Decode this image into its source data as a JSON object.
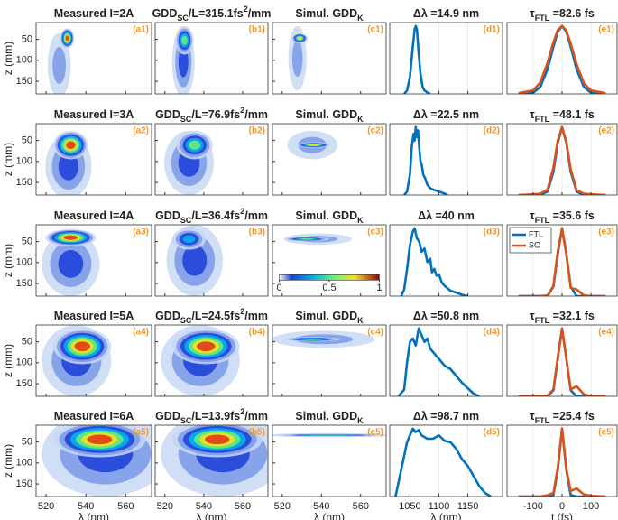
{
  "chart_data": [
    {
      "type": "heatmap",
      "title": [
        "Measured I=2A"
      ],
      "label": "(a1)",
      "xlim": [
        515,
        573
      ],
      "xticks": [
        520,
        540,
        560
      ],
      "ylim": [
        180,
        10
      ],
      "yticks": [
        50,
        100,
        150
      ],
      "ylabel": "z (mm)"
    },
    {
      "type": "heatmap",
      "title": [
        "GDD",
        {
          "sub": "SC"
        },
        "/L=315.1fs",
        {
          "sup": "2"
        },
        "/mm"
      ],
      "label": "(b1)",
      "xlim": [
        515,
        573
      ],
      "xticks": [
        520,
        540,
        560
      ],
      "ylim": [
        180,
        10
      ],
      "yticks": [
        50,
        100,
        150
      ]
    },
    {
      "type": "heatmap",
      "title": [
        "Simul. GDD",
        {
          "sub": "K"
        }
      ],
      "label": "(c1)",
      "xlim": [
        515,
        573
      ],
      "xticks": [
        520,
        540,
        560
      ],
      "ylim": [
        180,
        10
      ],
      "yticks": [
        50,
        100,
        150
      ]
    },
    {
      "type": "line",
      "title": [
        "Δλ =14.9 nm"
      ],
      "label": "(d1)",
      "xlim": [
        1015,
        1210
      ],
      "xticks": [
        1050,
        1100,
        1150
      ],
      "ylim": [
        0,
        1.05
      ],
      "grid": true,
      "x": [
        1040,
        1045,
        1050,
        1055,
        1058,
        1060,
        1062,
        1065,
        1068,
        1072,
        1075,
        1080,
        1085
      ],
      "series": [
        {
          "color": "#0072bd",
          "values": [
            0,
            0.05,
            0.25,
            0.7,
            0.95,
            1,
            0.95,
            0.6,
            0.3,
            0.1,
            0.05,
            0.02,
            0
          ]
        }
      ]
    },
    {
      "type": "line",
      "title": [
        "τ",
        {
          "sub": "FTL"
        },
        " =82.6 fs"
      ],
      "label": "(e1)",
      "xlim": [
        -190,
        190
      ],
      "xticks": [
        -100,
        0,
        100
      ],
      "ylim": [
        0,
        1.05
      ],
      "grid": true,
      "x": [
        -150,
        -100,
        -75,
        -50,
        -30,
        -15,
        0,
        15,
        30,
        50,
        75,
        100,
        150
      ],
      "series": [
        {
          "color": "#0072bd",
          "values": [
            0,
            0.017,
            0.102,
            0.362,
            0.694,
            0.912,
            1,
            0.912,
            0.694,
            0.362,
            0.102,
            0.017,
            0
          ]
        },
        {
          "color": "#d95319",
          "values": [
            0.01,
            0.05,
            0.17,
            0.46,
            0.76,
            0.94,
            1,
            0.93,
            0.74,
            0.44,
            0.16,
            0.05,
            0.01
          ]
        }
      ]
    },
    {
      "type": "heatmap",
      "title": [
        "Measured I=3A"
      ],
      "label": "(a2)",
      "xlim": [
        515,
        573
      ],
      "xticks": [
        520,
        540,
        560
      ],
      "ylim": [
        180,
        10
      ],
      "yticks": [
        50,
        100,
        150
      ],
      "ylabel": "z (mm)"
    },
    {
      "type": "heatmap",
      "title": [
        "GDD",
        {
          "sub": "SC"
        },
        "/L=76.9fs",
        {
          "sup": "2"
        },
        "/mm"
      ],
      "label": "(b2)",
      "xlim": [
        515,
        573
      ],
      "xticks": [
        520,
        540,
        560
      ],
      "ylim": [
        180,
        10
      ],
      "yticks": [
        50,
        100,
        150
      ]
    },
    {
      "type": "heatmap",
      "title": [
        "Simul. GDD",
        {
          "sub": "K"
        }
      ],
      "label": "(c2)",
      "xlim": [
        515,
        573
      ],
      "xticks": [
        520,
        540,
        560
      ],
      "ylim": [
        180,
        10
      ],
      "yticks": [
        50,
        100,
        150
      ]
    },
    {
      "type": "line",
      "title": [
        "Δλ =22.5 nm"
      ],
      "label": "(d2)",
      "xlim": [
        1015,
        1210
      ],
      "xticks": [
        1050,
        1100,
        1150
      ],
      "ylim": [
        0,
        1.05
      ],
      "grid": true,
      "x": [
        1040,
        1045,
        1050,
        1053,
        1056,
        1058,
        1060,
        1062,
        1064,
        1066,
        1068,
        1070,
        1073,
        1076,
        1080,
        1085,
        1090,
        1100,
        1110,
        1115
      ],
      "series": [
        {
          "color": "#0072bd",
          "values": [
            0,
            0.05,
            0.3,
            0.7,
            0.9,
            0.8,
            1,
            0.85,
            0.95,
            0.7,
            0.5,
            0.45,
            0.3,
            0.25,
            0.15,
            0.1,
            0.08,
            0.05,
            0.02,
            0
          ]
        }
      ]
    },
    {
      "type": "line",
      "title": [
        "τ",
        {
          "sub": "FTL"
        },
        " =48.1 fs"
      ],
      "label": "(e2)",
      "xlim": [
        -190,
        190
      ],
      "xticks": [
        -100,
        0,
        100
      ],
      "ylim": [
        0,
        1.05
      ],
      "grid": true,
      "x": [
        -150,
        -100,
        -75,
        -50,
        -30,
        -15,
        0,
        15,
        30,
        50,
        75,
        100,
        150
      ],
      "series": [
        {
          "color": "#0072bd",
          "values": [
            0,
            0,
            0,
            0.05,
            0.34,
            0.764,
            1,
            0.764,
            0.34,
            0.05,
            0,
            0,
            0
          ]
        },
        {
          "color": "#d95319",
          "values": [
            0,
            0.01,
            0.02,
            0.08,
            0.4,
            0.8,
            1,
            0.78,
            0.38,
            0.07,
            0.02,
            0.01,
            0
          ]
        }
      ]
    },
    {
      "type": "heatmap",
      "title": [
        "Measured I=4A"
      ],
      "label": "(a3)",
      "xlim": [
        515,
        573
      ],
      "xticks": [
        520,
        540,
        560
      ],
      "ylim": [
        180,
        10
      ],
      "yticks": [
        50,
        100,
        150
      ],
      "ylabel": "z (mm)"
    },
    {
      "type": "heatmap",
      "title": [
        "GDD",
        {
          "sub": "SC"
        },
        "/L=36.4fs",
        {
          "sup": "2"
        },
        "/mm"
      ],
      "label": "(b3)",
      "xlim": [
        515,
        573
      ],
      "xticks": [
        520,
        540,
        560
      ],
      "ylim": [
        180,
        10
      ],
      "yticks": [
        50,
        100,
        150
      ]
    },
    {
      "type": "heatmap",
      "title": [
        "Simul. GDD",
        {
          "sub": "K"
        }
      ],
      "label": "(c3)",
      "xlim": [
        515,
        573
      ],
      "xticks": [
        520,
        540,
        560
      ],
      "ylim": [
        180,
        10
      ],
      "yticks": [
        50,
        100,
        150
      ],
      "colorbar": {
        "ticks": [
          0,
          0.5,
          1
        ]
      }
    },
    {
      "type": "line",
      "title": [
        "Δλ =40 nm"
      ],
      "label": "(d3)",
      "xlim": [
        1015,
        1210
      ],
      "xticks": [
        1050,
        1100,
        1150
      ],
      "ylim": [
        0,
        1.05
      ],
      "grid": true,
      "x": [
        1035,
        1040,
        1045,
        1050,
        1055,
        1058,
        1062,
        1066,
        1070,
        1075,
        1080,
        1085,
        1088,
        1092,
        1096,
        1100,
        1105,
        1110,
        1120,
        1130,
        1140,
        1150
      ],
      "series": [
        {
          "color": "#0072bd",
          "values": [
            0,
            0.1,
            0.4,
            0.75,
            0.95,
            1,
            0.85,
            0.8,
            0.65,
            0.7,
            0.5,
            0.55,
            0.35,
            0.4,
            0.3,
            0.32,
            0.2,
            0.15,
            0.08,
            0.05,
            0.02,
            0
          ]
        }
      ]
    },
    {
      "type": "line",
      "title": [
        "τ",
        {
          "sub": "FTL"
        },
        " =35.6 fs"
      ],
      "label": "(e3)",
      "xlim": [
        -190,
        190
      ],
      "xticks": [
        -100,
        0,
        100
      ],
      "ylim": [
        0,
        1.05
      ],
      "grid": true,
      "legend": "upper left",
      "x": [
        -150,
        -100,
        -75,
        -50,
        -30,
        -15,
        0,
        15,
        30,
        50,
        75,
        100,
        150
      ],
      "series": [
        {
          "name": "FTL",
          "color": "#0072bd",
          "values": [
            0,
            0,
            0,
            0,
            0.139,
            0.611,
            1,
            0.611,
            0.139,
            0,
            0,
            0,
            0
          ]
        },
        {
          "name": "SC",
          "color": "#d95319",
          "values": [
            0,
            0,
            0,
            0.01,
            0.15,
            0.65,
            1,
            0.62,
            0.12,
            0.1,
            0.01,
            0,
            0
          ]
        }
      ]
    },
    {
      "type": "heatmap",
      "title": [
        "Measured I=5A"
      ],
      "label": "(a4)",
      "xlim": [
        515,
        573
      ],
      "xticks": [
        520,
        540,
        560
      ],
      "ylim": [
        180,
        10
      ],
      "yticks": [
        50,
        100,
        150
      ],
      "ylabel": "z (mm)"
    },
    {
      "type": "heatmap",
      "title": [
        "GDD",
        {
          "sub": "SC"
        },
        "/L=24.5fs",
        {
          "sup": "2"
        },
        "/mm"
      ],
      "label": "(b4)",
      "xlim": [
        515,
        573
      ],
      "xticks": [
        520,
        540,
        560
      ],
      "ylim": [
        180,
        10
      ],
      "yticks": [
        50,
        100,
        150
      ]
    },
    {
      "type": "heatmap",
      "title": [
        "Simul. GDD",
        {
          "sub": "K"
        }
      ],
      "label": "(c4)",
      "xlim": [
        515,
        573
      ],
      "xticks": [
        520,
        540,
        560
      ],
      "ylim": [
        180,
        10
      ],
      "yticks": [
        50,
        100,
        150
      ]
    },
    {
      "type": "line",
      "title": [
        "Δλ =50.8 nm"
      ],
      "label": "(d4)",
      "xlim": [
        1015,
        1210
      ],
      "xticks": [
        1050,
        1100,
        1150
      ],
      "ylim": [
        0,
        1.05
      ],
      "grid": true,
      "x": [
        1030,
        1040,
        1045,
        1050,
        1055,
        1060,
        1065,
        1070,
        1075,
        1080,
        1085,
        1090,
        1095,
        1100,
        1110,
        1120,
        1130,
        1140,
        1150,
        1160,
        1170
      ],
      "series": [
        {
          "color": "#0072bd",
          "values": [
            0,
            0.1,
            0.5,
            0.8,
            0.85,
            0.75,
            1,
            0.9,
            0.8,
            0.85,
            0.7,
            0.65,
            0.6,
            0.55,
            0.45,
            0.4,
            0.3,
            0.2,
            0.12,
            0.04,
            0
          ]
        }
      ]
    },
    {
      "type": "line",
      "title": [
        "τ",
        {
          "sub": "FTL"
        },
        " =32.1 fs"
      ],
      "label": "(e4)",
      "xlim": [
        -190,
        190
      ],
      "xticks": [
        -100,
        0,
        100
      ],
      "ylim": [
        0,
        1.05
      ],
      "grid": true,
      "x": [
        -150,
        -100,
        -75,
        -50,
        -30,
        -15,
        0,
        15,
        30,
        50,
        75,
        100,
        150
      ],
      "series": [
        {
          "color": "#0072bd",
          "values": [
            0,
            0,
            0,
            0,
            0.089,
            0.546,
            1,
            0.546,
            0.089,
            0,
            0,
            0,
            0
          ]
        },
        {
          "color": "#d95319",
          "values": [
            0,
            0,
            0,
            0.01,
            0.1,
            0.57,
            1,
            0.55,
            0.1,
            0.15,
            0.03,
            0,
            0
          ]
        }
      ]
    },
    {
      "type": "heatmap",
      "title": [
        "Measured I=6A"
      ],
      "label": "(a5)",
      "xlim": [
        515,
        573
      ],
      "xticks": [
        520,
        540,
        560
      ],
      "ylim": [
        180,
        10
      ],
      "yticks": [
        50,
        100,
        150
      ],
      "ylabel": "z (mm)",
      "xlabel": "λ (nm)"
    },
    {
      "type": "heatmap",
      "title": [
        "GDD",
        {
          "sub": "SC"
        },
        "/L=13.9fs",
        {
          "sup": "2"
        },
        "/mm"
      ],
      "label": "(b5)",
      "xlim": [
        515,
        573
      ],
      "xticks": [
        520,
        540,
        560
      ],
      "ylim": [
        180,
        10
      ],
      "yticks": [
        50,
        100,
        150
      ],
      "xlabel": "λ (nm)"
    },
    {
      "type": "heatmap",
      "title": [
        "Simul. GDD",
        {
          "sub": "K"
        }
      ],
      "label": "(c5)",
      "xlim": [
        515,
        573
      ],
      "xticks": [
        520,
        540,
        560
      ],
      "ylim": [
        180,
        10
      ],
      "yticks": [
        50,
        100,
        150
      ],
      "xlabel": "λ (nm)"
    },
    {
      "type": "line",
      "title": [
        "Δλ =98.7 nm"
      ],
      "label": "(d5)",
      "xlim": [
        1015,
        1210
      ],
      "xticks": [
        1050,
        1100,
        1150
      ],
      "ylim": [
        0,
        1.05
      ],
      "grid": true,
      "xlabel": "λ (nm)",
      "x": [
        1025,
        1035,
        1045,
        1055,
        1060,
        1065,
        1070,
        1080,
        1090,
        1100,
        1110,
        1120,
        1130,
        1140,
        1150,
        1160,
        1170,
        1180,
        1190
      ],
      "series": [
        {
          "color": "#0072bd",
          "values": [
            0,
            0.4,
            0.8,
            1,
            0.95,
            0.98,
            0.9,
            0.85,
            0.85,
            0.9,
            0.82,
            0.8,
            0.7,
            0.55,
            0.45,
            0.3,
            0.15,
            0.05,
            0
          ]
        }
      ]
    },
    {
      "type": "line",
      "title": [
        "τ",
        {
          "sub": "FTL"
        },
        " =25.4 fs"
      ],
      "label": "(e5)",
      "xlim": [
        -190,
        190
      ],
      "xticks": [
        -100,
        0,
        100
      ],
      "ylim": [
        0,
        1.05
      ],
      "grid": true,
      "xlabel": "t (fs)",
      "x": [
        -150,
        -100,
        -75,
        -50,
        -30,
        -15,
        0,
        15,
        30,
        50,
        75,
        100,
        150
      ],
      "series": [
        {
          "color": "#0072bd",
          "values": [
            0,
            0,
            0,
            0,
            0.021,
            0.38,
            1,
            0.38,
            0.021,
            0,
            0,
            0,
            0
          ]
        },
        {
          "color": "#d95319",
          "values": [
            0,
            0,
            0,
            0.02,
            0.05,
            0.42,
            1,
            0.4,
            0.08,
            0.12,
            0.03,
            0.01,
            0
          ]
        }
      ]
    }
  ]
}
